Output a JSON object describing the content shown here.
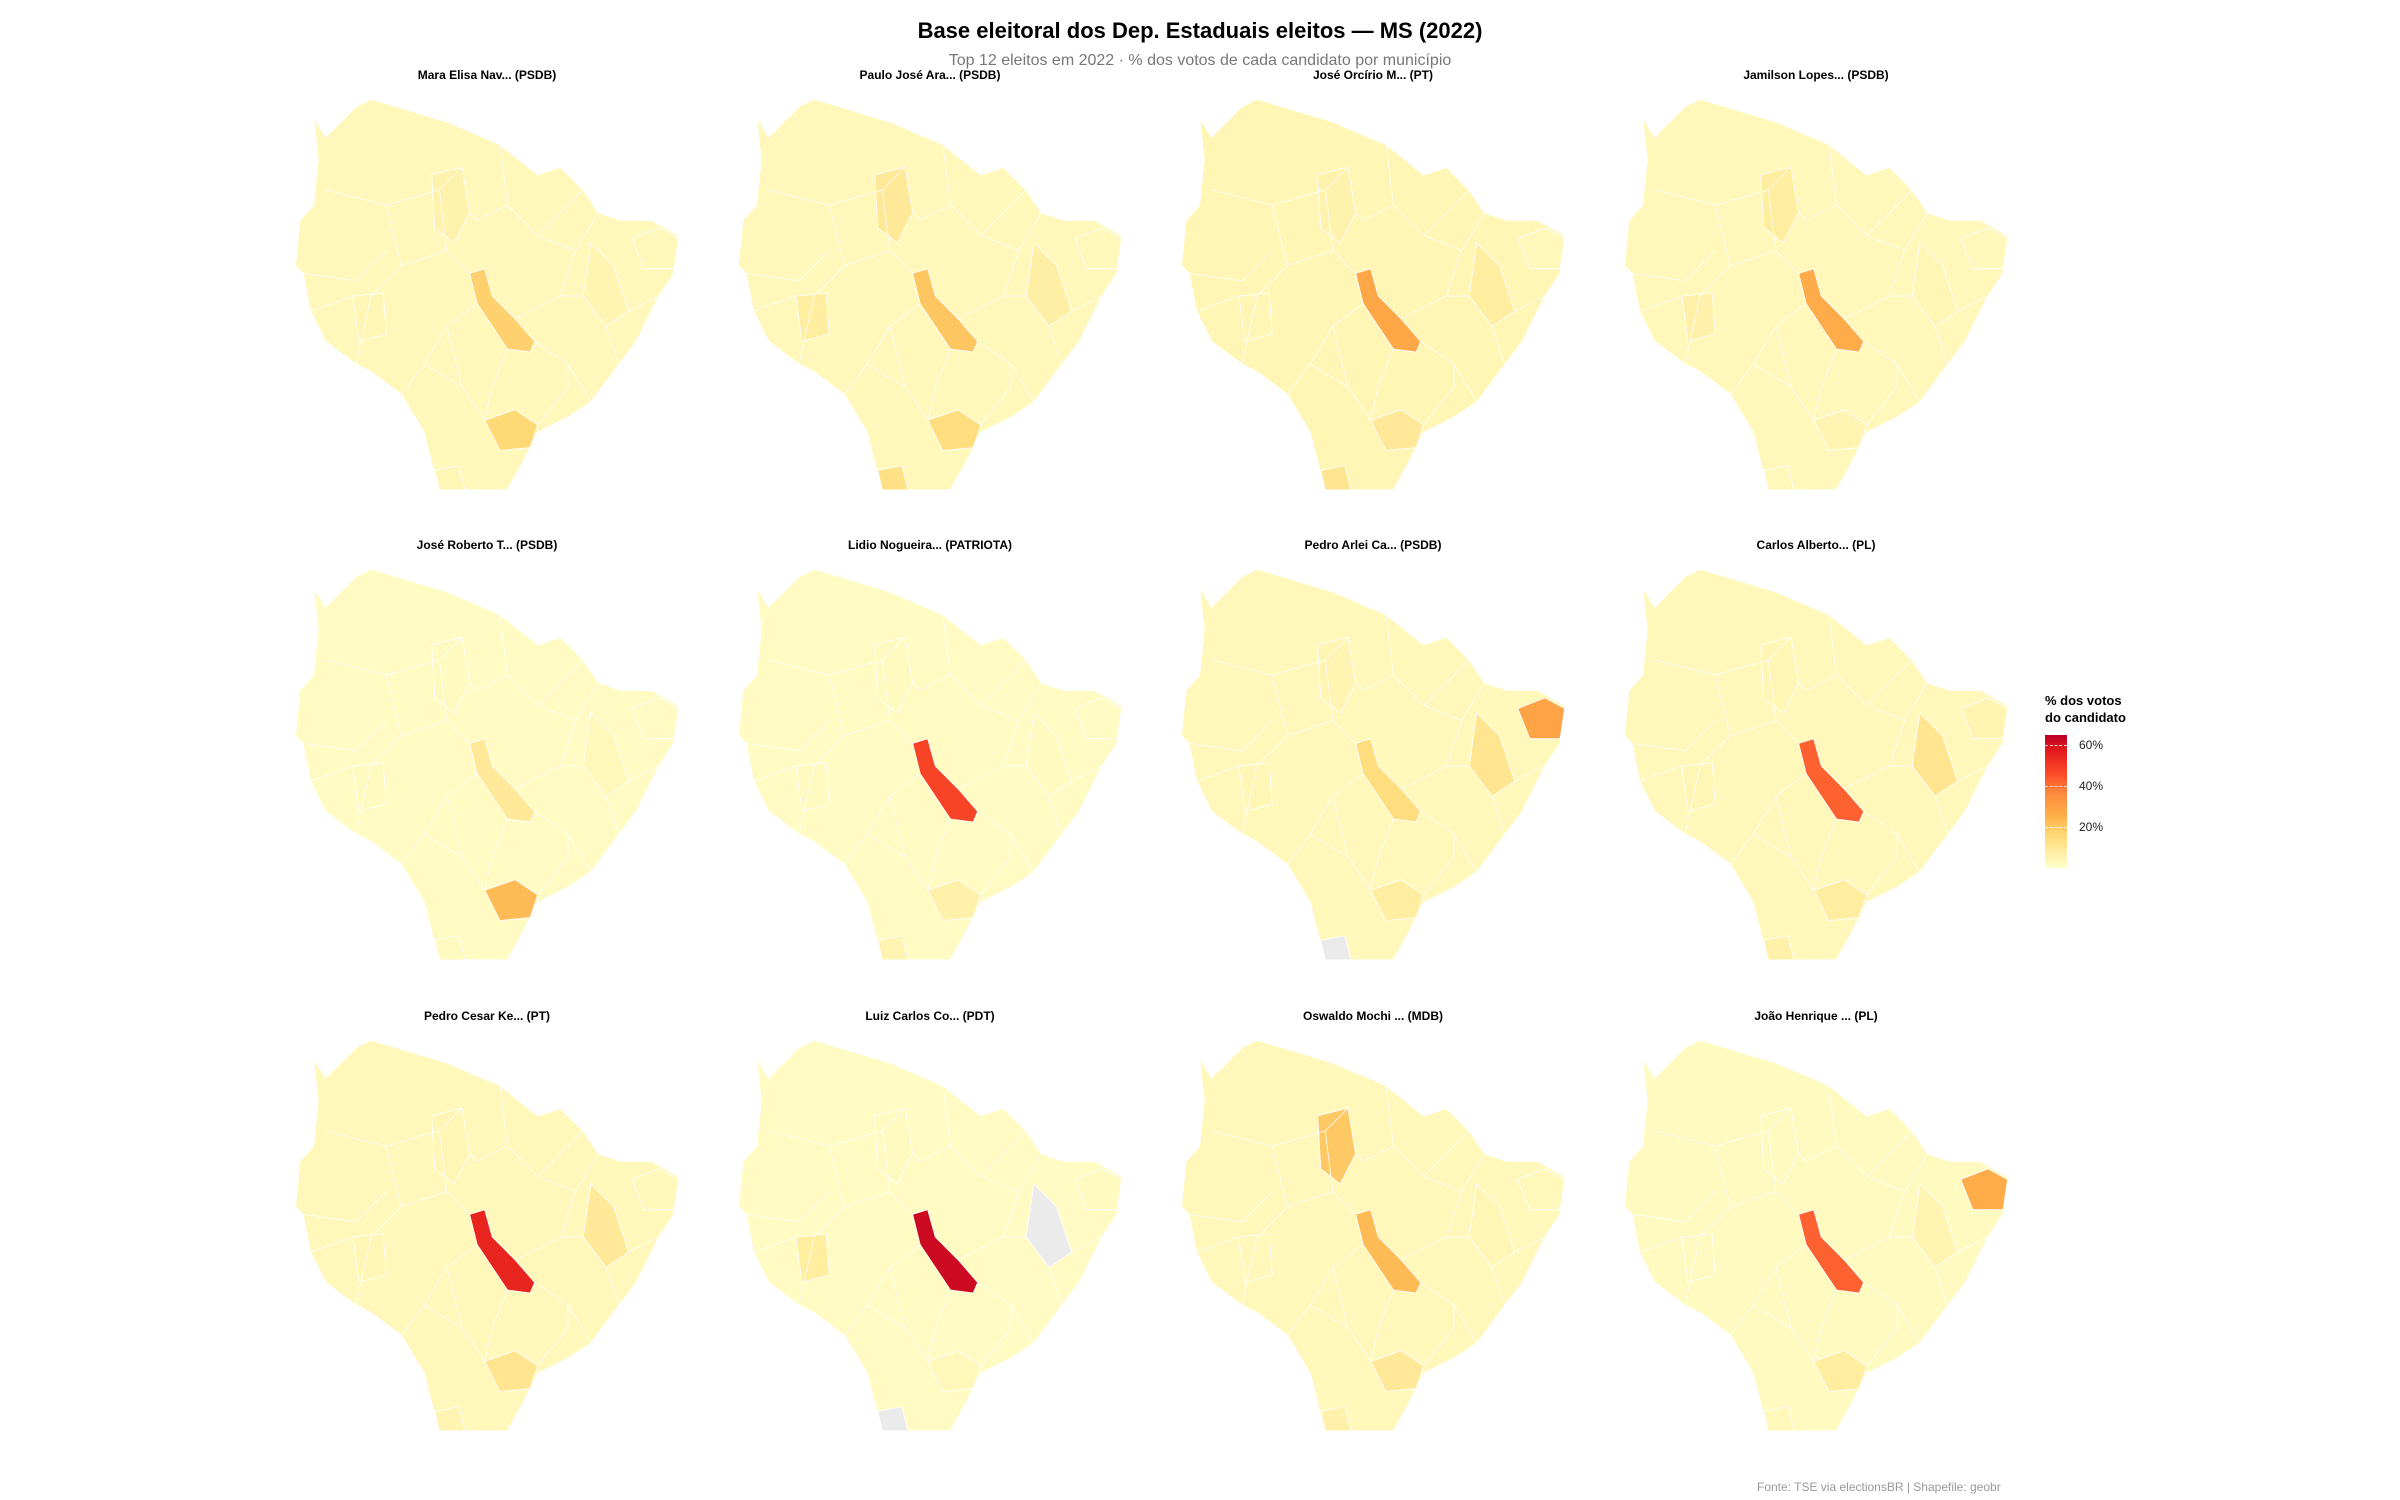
{
  "chart_data": {
    "type": "choropleth-map-facets",
    "title": "Base eleitoral dos Dep. Estaduais eleitos — MS (2022)",
    "subtitle": "Top 12 eleitos em 2022 · % dos votos de cada candidato por município",
    "caption": "Fonte: TSE via electionsBR | Shapefile: geobr",
    "legend": {
      "title_line1": "% dos votos",
      "title_line2": "do candidato",
      "ticks": [
        20,
        40,
        60
      ],
      "tick_labels": [
        "20%",
        "40%",
        "60%"
      ],
      "range": [
        0,
        65
      ],
      "placement": "right"
    },
    "colors": {
      "low": "#FFFFCC",
      "high": "#BD0026",
      "missing": "#EBEBEB",
      "border": "#FFFFFF"
    },
    "panels": [
      {
        "label": "Mara Elisa Nav... (PSDB)",
        "base": 4,
        "values": [
          22,
          20,
          6,
          7,
          5,
          4,
          5
        ]
      },
      {
        "label": "Paulo José Ara... (PSDB)",
        "base": 4,
        "values": [
          25,
          18,
          9,
          12,
          10,
          4,
          16
        ]
      },
      {
        "label": "José Orcírio M... (PT)",
        "base": 5,
        "values": [
          33,
          12,
          10,
          7,
          5,
          4,
          14
        ]
      },
      {
        "label": "Jamilson Lopes... (PSDB)",
        "base": 4,
        "values": [
          32,
          6,
          5,
          10,
          8,
          4,
          4
        ]
      },
      {
        "label": "José Roberto T... (PSDB)",
        "base": 2,
        "values": [
          12,
          28,
          4,
          3,
          3,
          2,
          3
        ]
      },
      {
        "label": "Lidio Nogueira... (PATRIOTA)",
        "base": 2,
        "values": [
          52,
          8,
          3,
          3,
          3,
          2,
          6
        ]
      },
      {
        "label": "Pedro Arlei Ca... (PSDB)",
        "base": 4,
        "values": [
          18,
          10,
          14,
          6,
          5,
          34,
          null
        ]
      },
      {
        "label": "Carlos Alberto... (PL)",
        "base": 4,
        "values": [
          47,
          10,
          14,
          5,
          5,
          6,
          8
        ]
      },
      {
        "label": "Pedro Cesar Ke... (PT)",
        "base": 4,
        "values": [
          58,
          14,
          12,
          5,
          5,
          4,
          6
        ]
      },
      {
        "label": "Luiz Carlos Co... (PDT)",
        "base": 2,
        "values": [
          63,
          4,
          null,
          3,
          10,
          3,
          null
        ]
      },
      {
        "label": "Oswaldo Mochi ... (MDB)",
        "base": 4,
        "values": [
          28,
          12,
          5,
          24,
          4,
          4,
          8
        ]
      },
      {
        "label": "João Henrique ... (PL)",
        "base": 3,
        "values": [
          47,
          10,
          6,
          3,
          3,
          32,
          4
        ]
      }
    ]
  }
}
